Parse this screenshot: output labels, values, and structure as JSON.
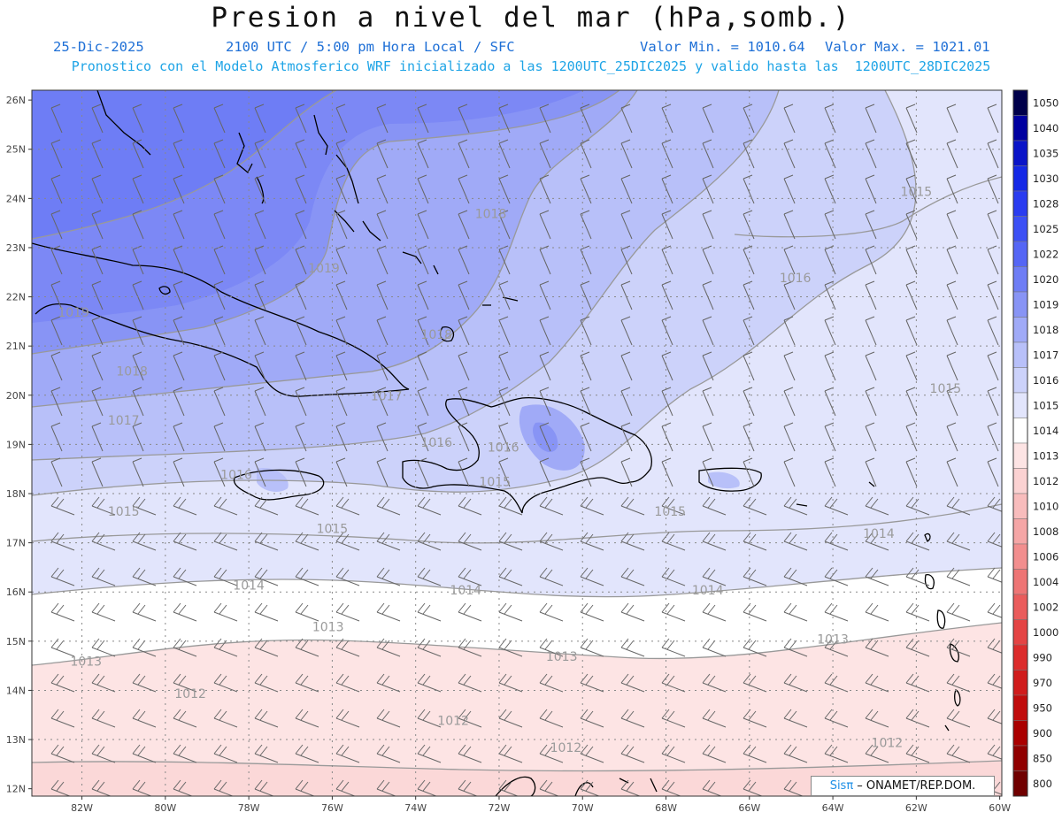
{
  "title": "Presion a nivel del mar (hPa,somb.)",
  "header": {
    "date": "25-Dic-2025",
    "time": "2100 UTC / 5:00 pm Hora Local / SFC",
    "vmin": "Valor Min. = 1010.64",
    "vmax": "Valor Max. = 1021.01",
    "model_line": "Pronostico con el Modelo Atmosferico WRF inicializado a las 1200UTC_25DIC2025 y valido hasta las  1200UTC_28DIC2025"
  },
  "credit": {
    "brand": "Sisπ",
    "org": " – ONAMET/REP.DOM."
  },
  "axes": {
    "lat_labels": [
      "26N",
      "25N",
      "24N",
      "23N",
      "22N",
      "21N",
      "20N",
      "19N",
      "18N",
      "17N",
      "16N",
      "15N",
      "14N",
      "13N",
      "12N"
    ],
    "lon_labels": [
      "82W",
      "80W",
      "78W",
      "76W",
      "74W",
      "72W",
      "70W",
      "68W",
      "66W",
      "64W",
      "62W",
      "60W"
    ]
  },
  "legend": {
    "levels": [
      "1050",
      "1040",
      "1035",
      "1030",
      "1028",
      "1025",
      "1022",
      "1020",
      "1019",
      "1018",
      "1017",
      "1016",
      "1015",
      "1014",
      "1013",
      "1012",
      "1010",
      "1008",
      "1006",
      "1004",
      "1002",
      "1000",
      "990",
      "970",
      "950",
      "900",
      "850",
      "800"
    ],
    "colors": [
      "#00004a",
      "#0000a0",
      "#0a14c8",
      "#1428e6",
      "#2a3cf0",
      "#3c50f5",
      "#5566f5",
      "#6e7df5",
      "#8894f5",
      "#a0aaf7",
      "#b8c0f9",
      "#ccd2fa",
      "#e2e5fc",
      "#ffffff",
      "#fde4e4",
      "#fbd2d2",
      "#f8bcbc",
      "#f5a6a6",
      "#f28e8e",
      "#ee7575",
      "#ea5c5c",
      "#e44444",
      "#dc2c2c",
      "#d01c1c",
      "#c00c0c",
      "#aa0000",
      "#900000",
      "#700000"
    ]
  },
  "contour_labels": [
    {
      "text": "1019",
      "lon": -76.2,
      "lat": 22.5
    },
    {
      "text": "1019",
      "lon": -82.2,
      "lat": 21.6
    },
    {
      "text": "1018",
      "lon": -72.2,
      "lat": 23.6
    },
    {
      "text": "1018",
      "lon": -73.5,
      "lat": 21.15
    },
    {
      "text": "1018",
      "lon": -80.8,
      "lat": 20.4
    },
    {
      "text": "1017",
      "lon": -81.0,
      "lat": 19.4
    },
    {
      "text": "1017",
      "lon": -74.7,
      "lat": 19.9
    },
    {
      "text": "1016",
      "lon": -78.3,
      "lat": 18.3
    },
    {
      "text": "1016",
      "lon": -73.5,
      "lat": 18.95
    },
    {
      "text": "1016",
      "lon": -71.9,
      "lat": 18.85
    },
    {
      "text": "1016",
      "lon": -64.9,
      "lat": 22.3
    },
    {
      "text": "1015",
      "lon": -72.1,
      "lat": 18.15
    },
    {
      "text": "1015",
      "lon": -62.0,
      "lat": 24.05
    },
    {
      "text": "1015",
      "lon": -61.3,
      "lat": 20.05
    },
    {
      "text": "1015",
      "lon": -81.0,
      "lat": 17.55
    },
    {
      "text": "1015",
      "lon": -76.0,
      "lat": 17.2
    },
    {
      "text": "1015",
      "lon": -67.9,
      "lat": 17.55
    },
    {
      "text": "1014",
      "lon": -62.9,
      "lat": 17.1
    },
    {
      "text": "1014",
      "lon": -78.0,
      "lat": 16.05
    },
    {
      "text": "1014",
      "lon": -72.8,
      "lat": 15.95
    },
    {
      "text": "1014",
      "lon": -67.0,
      "lat": 15.95
    },
    {
      "text": "1013",
      "lon": -76.1,
      "lat": 15.2
    },
    {
      "text": "1013",
      "lon": -81.9,
      "lat": 14.5
    },
    {
      "text": "1013",
      "lon": -70.5,
      "lat": 14.6
    },
    {
      "text": "1013",
      "lon": -64.0,
      "lat": 14.95
    },
    {
      "text": "1012",
      "lon": -79.4,
      "lat": 13.85
    },
    {
      "text": "1012",
      "lon": -73.1,
      "lat": 13.3
    },
    {
      "text": "1012",
      "lon": -70.4,
      "lat": 12.75
    },
    {
      "text": "1012",
      "lon": -62.7,
      "lat": 12.85
    }
  ]
}
